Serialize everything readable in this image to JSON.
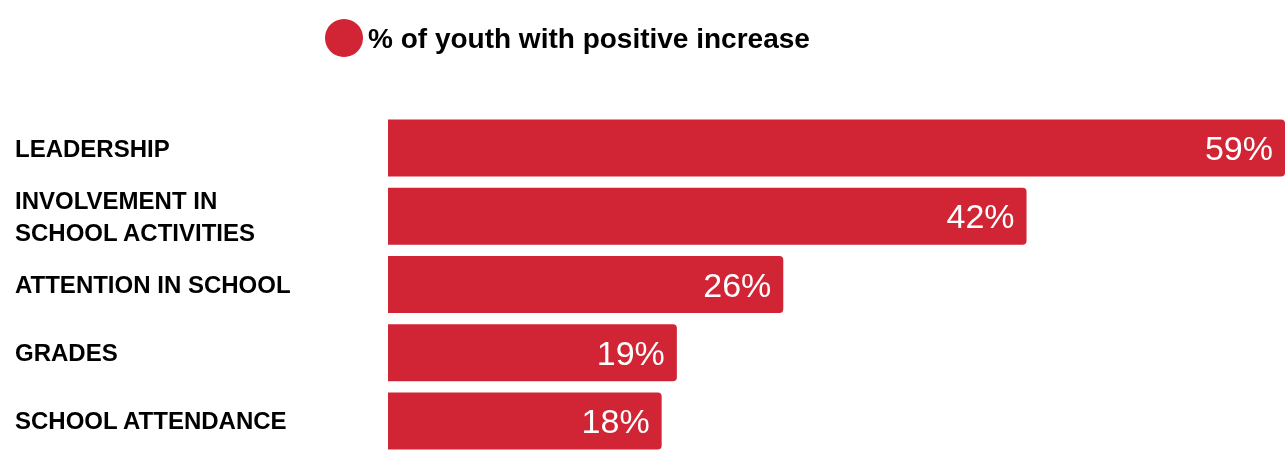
{
  "chart_data": {
    "type": "bar",
    "orientation": "horizontal",
    "tick_labels": false,
    "categories": [
      "LEADERSHIP",
      "INVOLVEMENT IN SCHOOL ACTIVITIES",
      "ATTENTION IN SCHOOL",
      "GRADES",
      "SCHOOL ATTENDANCE"
    ],
    "series": [
      {
        "name": "% of youth with positive increase",
        "color": "#d12434",
        "values": [
          59,
          42,
          26,
          19,
          18
        ],
        "value_labels": [
          "59%",
          "42%",
          "26%",
          "19%",
          "18%"
        ]
      }
    ],
    "legend": "top"
  }
}
